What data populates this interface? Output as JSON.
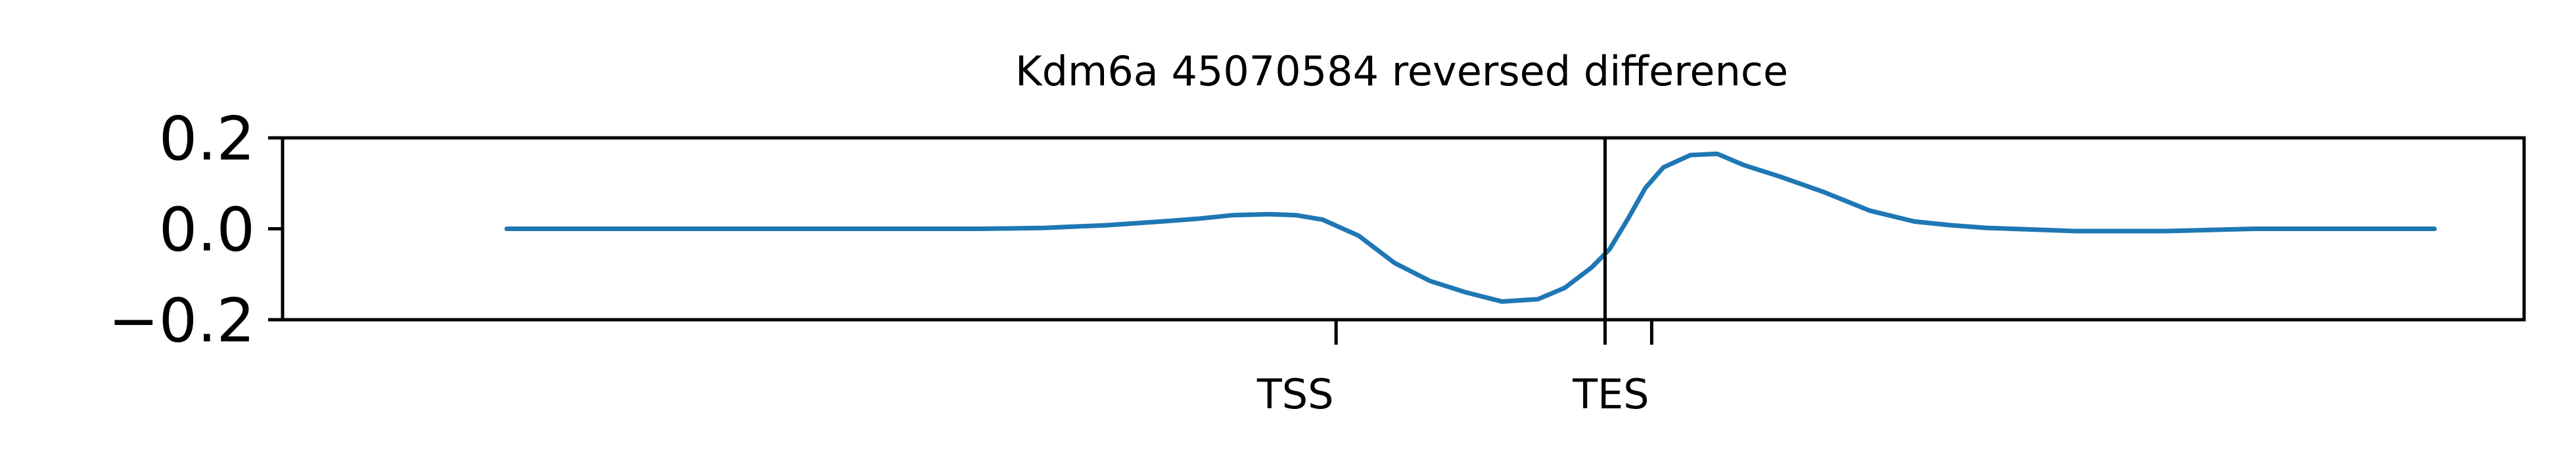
{
  "chart_data": {
    "type": "line",
    "title": "Kdm6a 45070584 reversed difference",
    "xlabel": "",
    "ylabel": "",
    "ylim": [
      -0.2,
      0.2
    ],
    "xlim": [
      -5000,
      20000
    ],
    "grid": false,
    "legend": "none",
    "yticks": [
      {
        "value": 0.2,
        "label": "0.2"
      },
      {
        "value": 0.0,
        "label": "0.0"
      },
      {
        "value": -0.2,
        "label": "−0.2"
      }
    ],
    "xticks": [
      {
        "value": 6750,
        "label": "TSS"
      },
      {
        "value": 9750,
        "label": ""
      },
      {
        "value": 10270,
        "label": "TES"
      }
    ],
    "vline_x": 9750,
    "series": [
      {
        "color": "#1f77b4",
        "x": [
          -2500,
          0,
          2000,
          2800,
          3500,
          4200,
          4800,
          5200,
          5600,
          6000,
          6300,
          6600,
          7000,
          7400,
          7800,
          8200,
          8600,
          9000,
          9300,
          9600,
          9800,
          10000,
          10200,
          10400,
          10700,
          11000,
          11300,
          11700,
          12200,
          12700,
          13200,
          13600,
          14000,
          15000,
          16000,
          17000,
          18000,
          19000
        ],
        "y": [
          0.0,
          0.0,
          0.0,
          0.0,
          0.002,
          0.008,
          0.016,
          0.022,
          0.03,
          0.032,
          0.03,
          0.02,
          -0.015,
          -0.075,
          -0.115,
          -0.14,
          -0.16,
          -0.155,
          -0.13,
          -0.085,
          -0.045,
          0.02,
          0.09,
          0.135,
          0.162,
          0.165,
          0.14,
          0.115,
          0.08,
          0.04,
          0.016,
          0.008,
          0.002,
          -0.005,
          -0.005,
          0.0,
          0.0,
          0.0
        ]
      }
    ]
  }
}
